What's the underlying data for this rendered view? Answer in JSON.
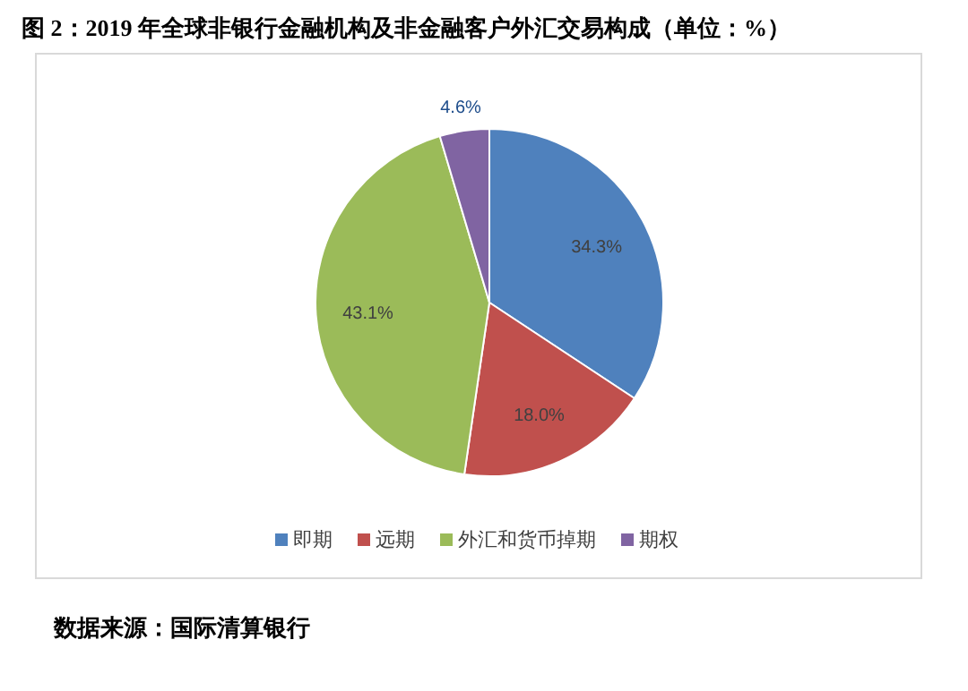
{
  "chart_data": {
    "type": "pie",
    "title": "图 2：2019 年全球非银行金融机构及非金融客户外汇交易构成（单位：%）",
    "categories": [
      "即期",
      "远期",
      "外汇和货币掉期",
      "期权"
    ],
    "values": [
      34.3,
      18.0,
      43.1,
      4.6
    ],
    "value_labels": [
      "34.3%",
      "18.0%",
      "43.1%",
      "4.6%"
    ],
    "colors": [
      "#4f81bd",
      "#c0504d",
      "#9bbb59",
      "#8064a2"
    ],
    "legend": "bottom",
    "annotations": [
      "数据来源：国际清算银行"
    ]
  }
}
